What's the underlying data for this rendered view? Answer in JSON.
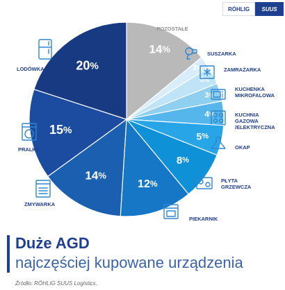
{
  "logo": {
    "left_text": "RÖHLIG",
    "right_text": "SUUS"
  },
  "title": "Duże AGD",
  "subtitle": "najczęściej kupowane urządzenia",
  "source": "Źródło: RÖHLIG SUUS Logistics.",
  "chart_data": {
    "type": "pie",
    "unit": "%",
    "slices": [
      {
        "label": "POZOSTAŁE",
        "value": 14,
        "color": "#b9b9b9",
        "icon": ""
      },
      {
        "label": "SUSZARKA",
        "value": 2,
        "color": "#d8edf9",
        "icon": "hair-dryer-icon"
      },
      {
        "label": "ZAMRAŻARKA",
        "value": 3,
        "color": "#bfe3f7",
        "icon": "freezer-icon"
      },
      {
        "label": "KUCHENKA MIKROFALOWA",
        "value": 3,
        "color": "#8fd0f1",
        "icon": "microwave-icon"
      },
      {
        "label": "KUCHNIA GAZOWA /ELEKTRYCZNA",
        "value": 4,
        "color": "#54b6ea",
        "icon": "gas-stove-icon"
      },
      {
        "label": "OKAP",
        "value": 5,
        "color": "#27a5e6",
        "icon": "cooker-hood-icon"
      },
      {
        "label": "PŁYTA GRZEWCZA",
        "value": 8,
        "color": "#0f91d8",
        "icon": "hob-icon"
      },
      {
        "label": "PIEKARNIK",
        "value": 12,
        "color": "#1677c6",
        "icon": "oven-icon"
      },
      {
        "label": "ZMYWARKA",
        "value": 14,
        "color": "#1a5fb0",
        "icon": "dishwasher-icon"
      },
      {
        "label": "PRALKA",
        "value": 15,
        "color": "#1c4c9f",
        "icon": "washing-machine-icon"
      },
      {
        "label": "LODÓWKA",
        "value": 20,
        "color": "#183a82",
        "icon": "fridge-icon"
      }
    ]
  }
}
